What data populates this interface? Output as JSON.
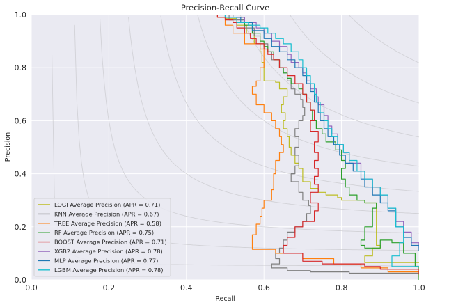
{
  "chart_data": {
    "type": "line",
    "title": "Precision-Recall Curve",
    "xlabel": "Recall",
    "ylabel": "Precision",
    "xlim": [
      0,
      1
    ],
    "ylim": [
      0,
      1
    ],
    "xticks": [
      "0.0",
      "0.2",
      "0.4",
      "0.6",
      "0.8",
      "1.0"
    ],
    "yticks": [
      "0.0",
      "0.2",
      "0.4",
      "0.6",
      "0.8",
      "1.0"
    ],
    "grid": true,
    "iso_f1_curves": [
      0.1,
      0.2,
      0.3,
      0.4,
      0.5,
      0.6,
      0.7,
      0.8,
      0.9
    ],
    "legend_position": "lower-left",
    "series": [
      {
        "name": "LOGI Average Precision  (APR = 0.71)",
        "color": "#bcbd22",
        "points": [
          [
            0.465,
            1.0
          ],
          [
            0.5,
            0.985
          ],
          [
            0.53,
            0.96
          ],
          [
            0.555,
            0.93
          ],
          [
            0.575,
            0.89
          ],
          [
            0.59,
            0.86
          ],
          [
            0.595,
            0.82
          ],
          [
            0.6,
            0.79
          ],
          [
            0.6,
            0.75
          ],
          [
            0.63,
            0.745
          ],
          [
            0.64,
            0.72
          ],
          [
            0.66,
            0.71
          ],
          [
            0.66,
            0.69
          ],
          [
            0.65,
            0.66
          ],
          [
            0.645,
            0.63
          ],
          [
            0.655,
            0.6
          ],
          [
            0.65,
            0.57
          ],
          [
            0.66,
            0.54
          ],
          [
            0.665,
            0.5
          ],
          [
            0.67,
            0.47
          ],
          [
            0.68,
            0.44
          ],
          [
            0.69,
            0.42
          ],
          [
            0.7,
            0.4
          ],
          [
            0.7,
            0.37
          ],
          [
            0.72,
            0.345
          ],
          [
            0.74,
            0.33
          ],
          [
            0.76,
            0.32
          ],
          [
            0.79,
            0.31
          ],
          [
            0.8,
            0.3
          ],
          [
            0.86,
            0.29
          ],
          [
            0.89,
            0.28
          ],
          [
            0.89,
            0.13
          ],
          [
            0.9,
            0.12
          ],
          [
            0.88,
            0.09
          ],
          [
            0.86,
            0.07
          ],
          [
            0.86,
            0.065
          ],
          [
            1.0,
            0.065
          ]
        ]
      },
      {
        "name": "KNN Average Precision  (APR = 0.67)",
        "color": "#7f7f7f",
        "points": [
          [
            0.465,
            1.0
          ],
          [
            0.51,
            0.98
          ],
          [
            0.55,
            0.95
          ],
          [
            0.575,
            0.92
          ],
          [
            0.59,
            0.89
          ],
          [
            0.61,
            0.86
          ],
          [
            0.62,
            0.83
          ],
          [
            0.64,
            0.8
          ],
          [
            0.65,
            0.78
          ],
          [
            0.66,
            0.75
          ],
          [
            0.67,
            0.72
          ],
          [
            0.68,
            0.7
          ],
          [
            0.695,
            0.68
          ],
          [
            0.7,
            0.65
          ],
          [
            0.705,
            0.62
          ],
          [
            0.7,
            0.6
          ],
          [
            0.69,
            0.57
          ],
          [
            0.68,
            0.54
          ],
          [
            0.69,
            0.5
          ],
          [
            0.68,
            0.47
          ],
          [
            0.69,
            0.43
          ],
          [
            0.68,
            0.4
          ],
          [
            0.67,
            0.37
          ],
          [
            0.69,
            0.33
          ],
          [
            0.7,
            0.3
          ],
          [
            0.715,
            0.28
          ],
          [
            0.72,
            0.25
          ],
          [
            0.71,
            0.22
          ],
          [
            0.7,
            0.2
          ],
          [
            0.68,
            0.18
          ],
          [
            0.66,
            0.15
          ],
          [
            0.65,
            0.12
          ],
          [
            0.64,
            0.1
          ],
          [
            0.63,
            0.08
          ],
          [
            0.64,
            0.06
          ],
          [
            0.62,
            0.045
          ],
          [
            0.66,
            0.035
          ],
          [
            0.72,
            0.03
          ],
          [
            0.82,
            0.025
          ],
          [
            1.0,
            0.02
          ]
        ]
      },
      {
        "name": "TREE Average Precision  (APR = 0.58)",
        "color": "#ff7f0e",
        "points": [
          [
            0.47,
            1.0
          ],
          [
            0.48,
            0.99
          ],
          [
            0.5,
            0.96
          ],
          [
            0.52,
            0.93
          ],
          [
            0.55,
            0.89
          ],
          [
            0.59,
            0.87
          ],
          [
            0.6,
            0.84
          ],
          [
            0.6,
            0.8
          ],
          [
            0.59,
            0.78
          ],
          [
            0.59,
            0.75
          ],
          [
            0.58,
            0.73
          ],
          [
            0.57,
            0.7
          ],
          [
            0.58,
            0.66
          ],
          [
            0.6,
            0.63
          ],
          [
            0.62,
            0.6
          ],
          [
            0.63,
            0.57
          ],
          [
            0.64,
            0.54
          ],
          [
            0.645,
            0.51
          ],
          [
            0.65,
            0.48
          ],
          [
            0.64,
            0.45
          ],
          [
            0.63,
            0.43
          ],
          [
            0.63,
            0.4
          ],
          [
            0.625,
            0.37
          ],
          [
            0.625,
            0.34
          ],
          [
            0.62,
            0.3
          ],
          [
            0.6,
            0.27
          ],
          [
            0.595,
            0.24
          ],
          [
            0.59,
            0.21
          ],
          [
            0.58,
            0.17
          ],
          [
            0.57,
            0.115
          ],
          [
            0.63,
            0.1
          ],
          [
            0.7,
            0.08
          ],
          [
            0.78,
            0.06
          ],
          [
            0.85,
            0.045
          ],
          [
            0.92,
            0.03
          ],
          [
            1.0,
            0.01
          ]
        ]
      },
      {
        "name": "RF Average Precision  (APR = 0.75)",
        "color": "#2ca02c",
        "points": [
          [
            0.465,
            1.0
          ],
          [
            0.52,
            0.99
          ],
          [
            0.55,
            0.96
          ],
          [
            0.57,
            0.93
          ],
          [
            0.59,
            0.9
          ],
          [
            0.6,
            0.88
          ],
          [
            0.61,
            0.86
          ],
          [
            0.625,
            0.83
          ],
          [
            0.64,
            0.8
          ],
          [
            0.65,
            0.78
          ],
          [
            0.66,
            0.76
          ],
          [
            0.67,
            0.74
          ],
          [
            0.69,
            0.72
          ],
          [
            0.7,
            0.7
          ],
          [
            0.71,
            0.67
          ],
          [
            0.72,
            0.64
          ],
          [
            0.725,
            0.6
          ],
          [
            0.735,
            0.57
          ],
          [
            0.75,
            0.55
          ],
          [
            0.76,
            0.52
          ],
          [
            0.785,
            0.49
          ],
          [
            0.8,
            0.45
          ],
          [
            0.81,
            0.42
          ],
          [
            0.8,
            0.38
          ],
          [
            0.81,
            0.35
          ],
          [
            0.82,
            0.32
          ],
          [
            0.84,
            0.3
          ],
          [
            0.86,
            0.29
          ],
          [
            0.89,
            0.27
          ],
          [
            0.88,
            0.2
          ],
          [
            0.86,
            0.15
          ],
          [
            0.85,
            0.13
          ],
          [
            0.86,
            0.12
          ],
          [
            0.9,
            0.15
          ],
          [
            0.93,
            0.14
          ],
          [
            0.96,
            0.1
          ],
          [
            0.99,
            0.05
          ],
          [
            1.0,
            0.0
          ]
        ]
      },
      {
        "name": "BOOST Average Precision  (APR = 0.71)",
        "color": "#d62728",
        "points": [
          [
            0.46,
            1.0
          ],
          [
            0.48,
            0.99
          ],
          [
            0.5,
            0.98
          ],
          [
            0.52,
            0.97
          ],
          [
            0.53,
            0.95
          ],
          [
            0.55,
            0.93
          ],
          [
            0.565,
            0.91
          ],
          [
            0.58,
            0.89
          ],
          [
            0.6,
            0.87
          ],
          [
            0.61,
            0.85
          ],
          [
            0.625,
            0.83
          ],
          [
            0.64,
            0.8
          ],
          [
            0.66,
            0.77
          ],
          [
            0.68,
            0.74
          ],
          [
            0.7,
            0.7
          ],
          [
            0.71,
            0.67
          ],
          [
            0.72,
            0.64
          ],
          [
            0.73,
            0.6
          ],
          [
            0.72,
            0.56
          ],
          [
            0.74,
            0.52
          ],
          [
            0.73,
            0.48
          ],
          [
            0.74,
            0.45
          ],
          [
            0.73,
            0.42
          ],
          [
            0.74,
            0.39
          ],
          [
            0.73,
            0.36
          ],
          [
            0.74,
            0.33
          ],
          [
            0.72,
            0.29
          ],
          [
            0.74,
            0.26
          ],
          [
            0.73,
            0.22
          ],
          [
            0.7,
            0.2
          ],
          [
            0.68,
            0.16
          ],
          [
            0.66,
            0.13
          ],
          [
            0.65,
            0.1
          ],
          [
            0.7,
            0.07
          ],
          [
            0.75,
            0.06
          ],
          [
            0.83,
            0.06
          ],
          [
            0.86,
            0.05
          ],
          [
            0.9,
            0.04
          ],
          [
            1.0,
            0.02
          ]
        ]
      },
      {
        "name": "XGB2 Average Precision  (APR = 0.78)",
        "color": "#9467bd",
        "points": [
          [
            0.47,
            1.0
          ],
          [
            0.52,
            0.99
          ],
          [
            0.55,
            0.97
          ],
          [
            0.58,
            0.95
          ],
          [
            0.6,
            0.93
          ],
          [
            0.62,
            0.9
          ],
          [
            0.64,
            0.88
          ],
          [
            0.66,
            0.85
          ],
          [
            0.67,
            0.82
          ],
          [
            0.69,
            0.8
          ],
          [
            0.7,
            0.78
          ],
          [
            0.71,
            0.75
          ],
          [
            0.72,
            0.72
          ],
          [
            0.735,
            0.69
          ],
          [
            0.74,
            0.66
          ],
          [
            0.755,
            0.62
          ],
          [
            0.765,
            0.58
          ],
          [
            0.775,
            0.55
          ],
          [
            0.79,
            0.51
          ],
          [
            0.805,
            0.48
          ],
          [
            0.82,
            0.44
          ],
          [
            0.85,
            0.41
          ],
          [
            0.86,
            0.38
          ],
          [
            0.88,
            0.35
          ],
          [
            0.9,
            0.32
          ],
          [
            0.92,
            0.27
          ],
          [
            0.94,
            0.22
          ],
          [
            0.96,
            0.18
          ],
          [
            0.98,
            0.14
          ],
          [
            1.0,
            0.12
          ]
        ]
      },
      {
        "name": "MLP Average Precision  (APR = 0.77)",
        "color": "#1f77b4",
        "points": [
          [
            0.47,
            1.0
          ],
          [
            0.5,
            0.99
          ],
          [
            0.54,
            0.97
          ],
          [
            0.57,
            0.94
          ],
          [
            0.6,
            0.91
          ],
          [
            0.62,
            0.88
          ],
          [
            0.64,
            0.86
          ],
          [
            0.66,
            0.83
          ],
          [
            0.68,
            0.8
          ],
          [
            0.7,
            0.77
          ],
          [
            0.71,
            0.74
          ],
          [
            0.72,
            0.71
          ],
          [
            0.73,
            0.67
          ],
          [
            0.74,
            0.63
          ],
          [
            0.745,
            0.6
          ],
          [
            0.755,
            0.57
          ],
          [
            0.765,
            0.54
          ],
          [
            0.78,
            0.51
          ],
          [
            0.795,
            0.47
          ],
          [
            0.81,
            0.44
          ],
          [
            0.83,
            0.41
          ],
          [
            0.85,
            0.38
          ],
          [
            0.86,
            0.35
          ],
          [
            0.88,
            0.32
          ],
          [
            0.9,
            0.29
          ],
          [
            0.92,
            0.26
          ],
          [
            0.94,
            0.2
          ],
          [
            0.96,
            0.16
          ],
          [
            0.98,
            0.13
          ],
          [
            1.0,
            0.11
          ]
        ]
      },
      {
        "name": "LGBM Average Precision  (APR = 0.78)",
        "color": "#17becf",
        "points": [
          [
            0.47,
            1.0
          ],
          [
            0.5,
            0.99
          ],
          [
            0.53,
            0.97
          ],
          [
            0.56,
            0.96
          ],
          [
            0.59,
            0.95
          ],
          [
            0.61,
            0.93
          ],
          [
            0.63,
            0.91
          ],
          [
            0.65,
            0.89
          ],
          [
            0.67,
            0.86
          ],
          [
            0.69,
            0.83
          ],
          [
            0.7,
            0.8
          ],
          [
            0.71,
            0.77
          ],
          [
            0.72,
            0.74
          ],
          [
            0.73,
            0.7
          ],
          [
            0.735,
            0.67
          ],
          [
            0.745,
            0.63
          ],
          [
            0.755,
            0.6
          ],
          [
            0.765,
            0.57
          ],
          [
            0.775,
            0.54
          ],
          [
            0.79,
            0.51
          ],
          [
            0.805,
            0.48
          ],
          [
            0.82,
            0.45
          ],
          [
            0.84,
            0.41
          ],
          [
            0.86,
            0.38
          ],
          [
            0.88,
            0.35
          ],
          [
            0.9,
            0.32
          ],
          [
            0.92,
            0.27
          ],
          [
            0.94,
            0.2
          ],
          [
            0.96,
            0.14
          ],
          [
            0.95,
            0.09
          ],
          [
            0.93,
            0.05
          ],
          [
            1.0,
            0.05
          ]
        ]
      }
    ]
  }
}
